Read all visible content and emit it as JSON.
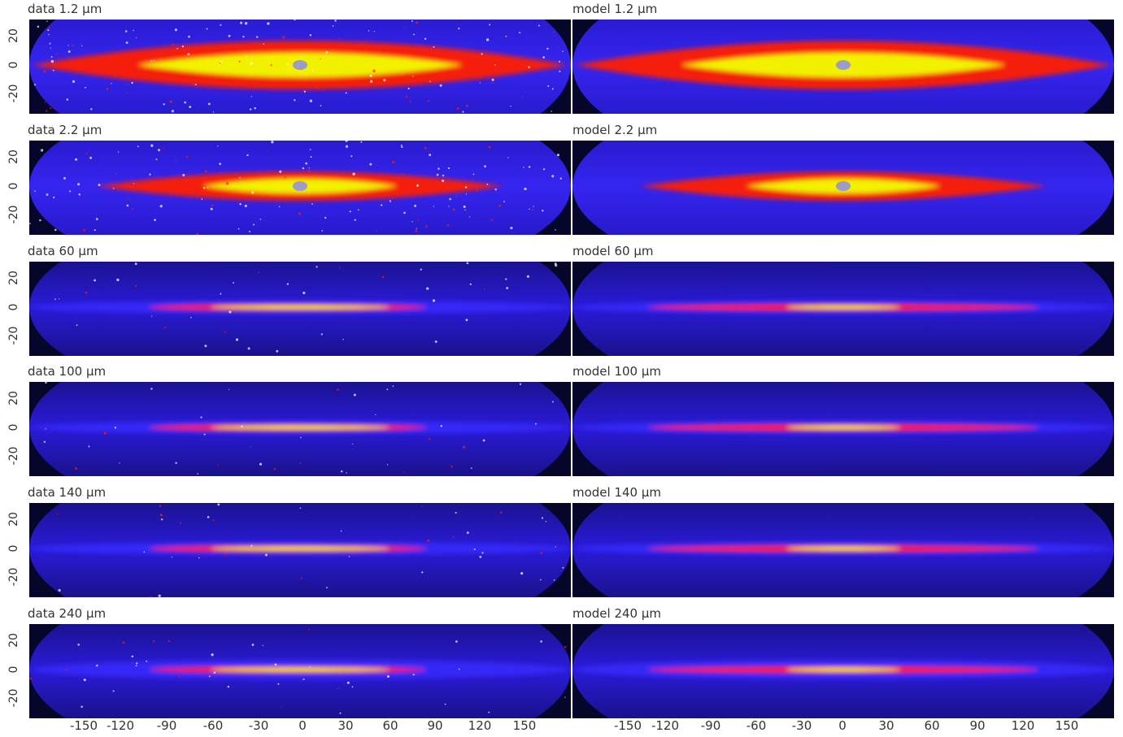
{
  "figure": {
    "panels": [
      {
        "data_label": "data 1.2 µm",
        "model_label": "model 1.2 µm",
        "profile": "nir_thick"
      },
      {
        "data_label": "data 2.2 µm",
        "model_label": "model 2.2 µm",
        "profile": "nir"
      },
      {
        "data_label": "data 60 µm",
        "model_label": "model 60 µm",
        "profile": "fir"
      },
      {
        "data_label": "data 100 µm",
        "model_label": "model 100 µm",
        "profile": "fir"
      },
      {
        "data_label": "data 140 µm",
        "model_label": "model 140 µm",
        "profile": "fir"
      },
      {
        "data_label": "data 240 µm",
        "model_label": "model 240 µm",
        "profile": "fir_wide"
      }
    ],
    "y_ticks": [
      "20",
      "0",
      "-20"
    ],
    "x_ticks": [
      "-150",
      "-120",
      "-90",
      "-60",
      "-30",
      "0",
      "30",
      "60",
      "90",
      "120",
      "150"
    ],
    "colors": {
      "background": "#06052a",
      "low": "#2a1bd8",
      "mid": "#ff1e00",
      "high": "#f2f200"
    }
  }
}
